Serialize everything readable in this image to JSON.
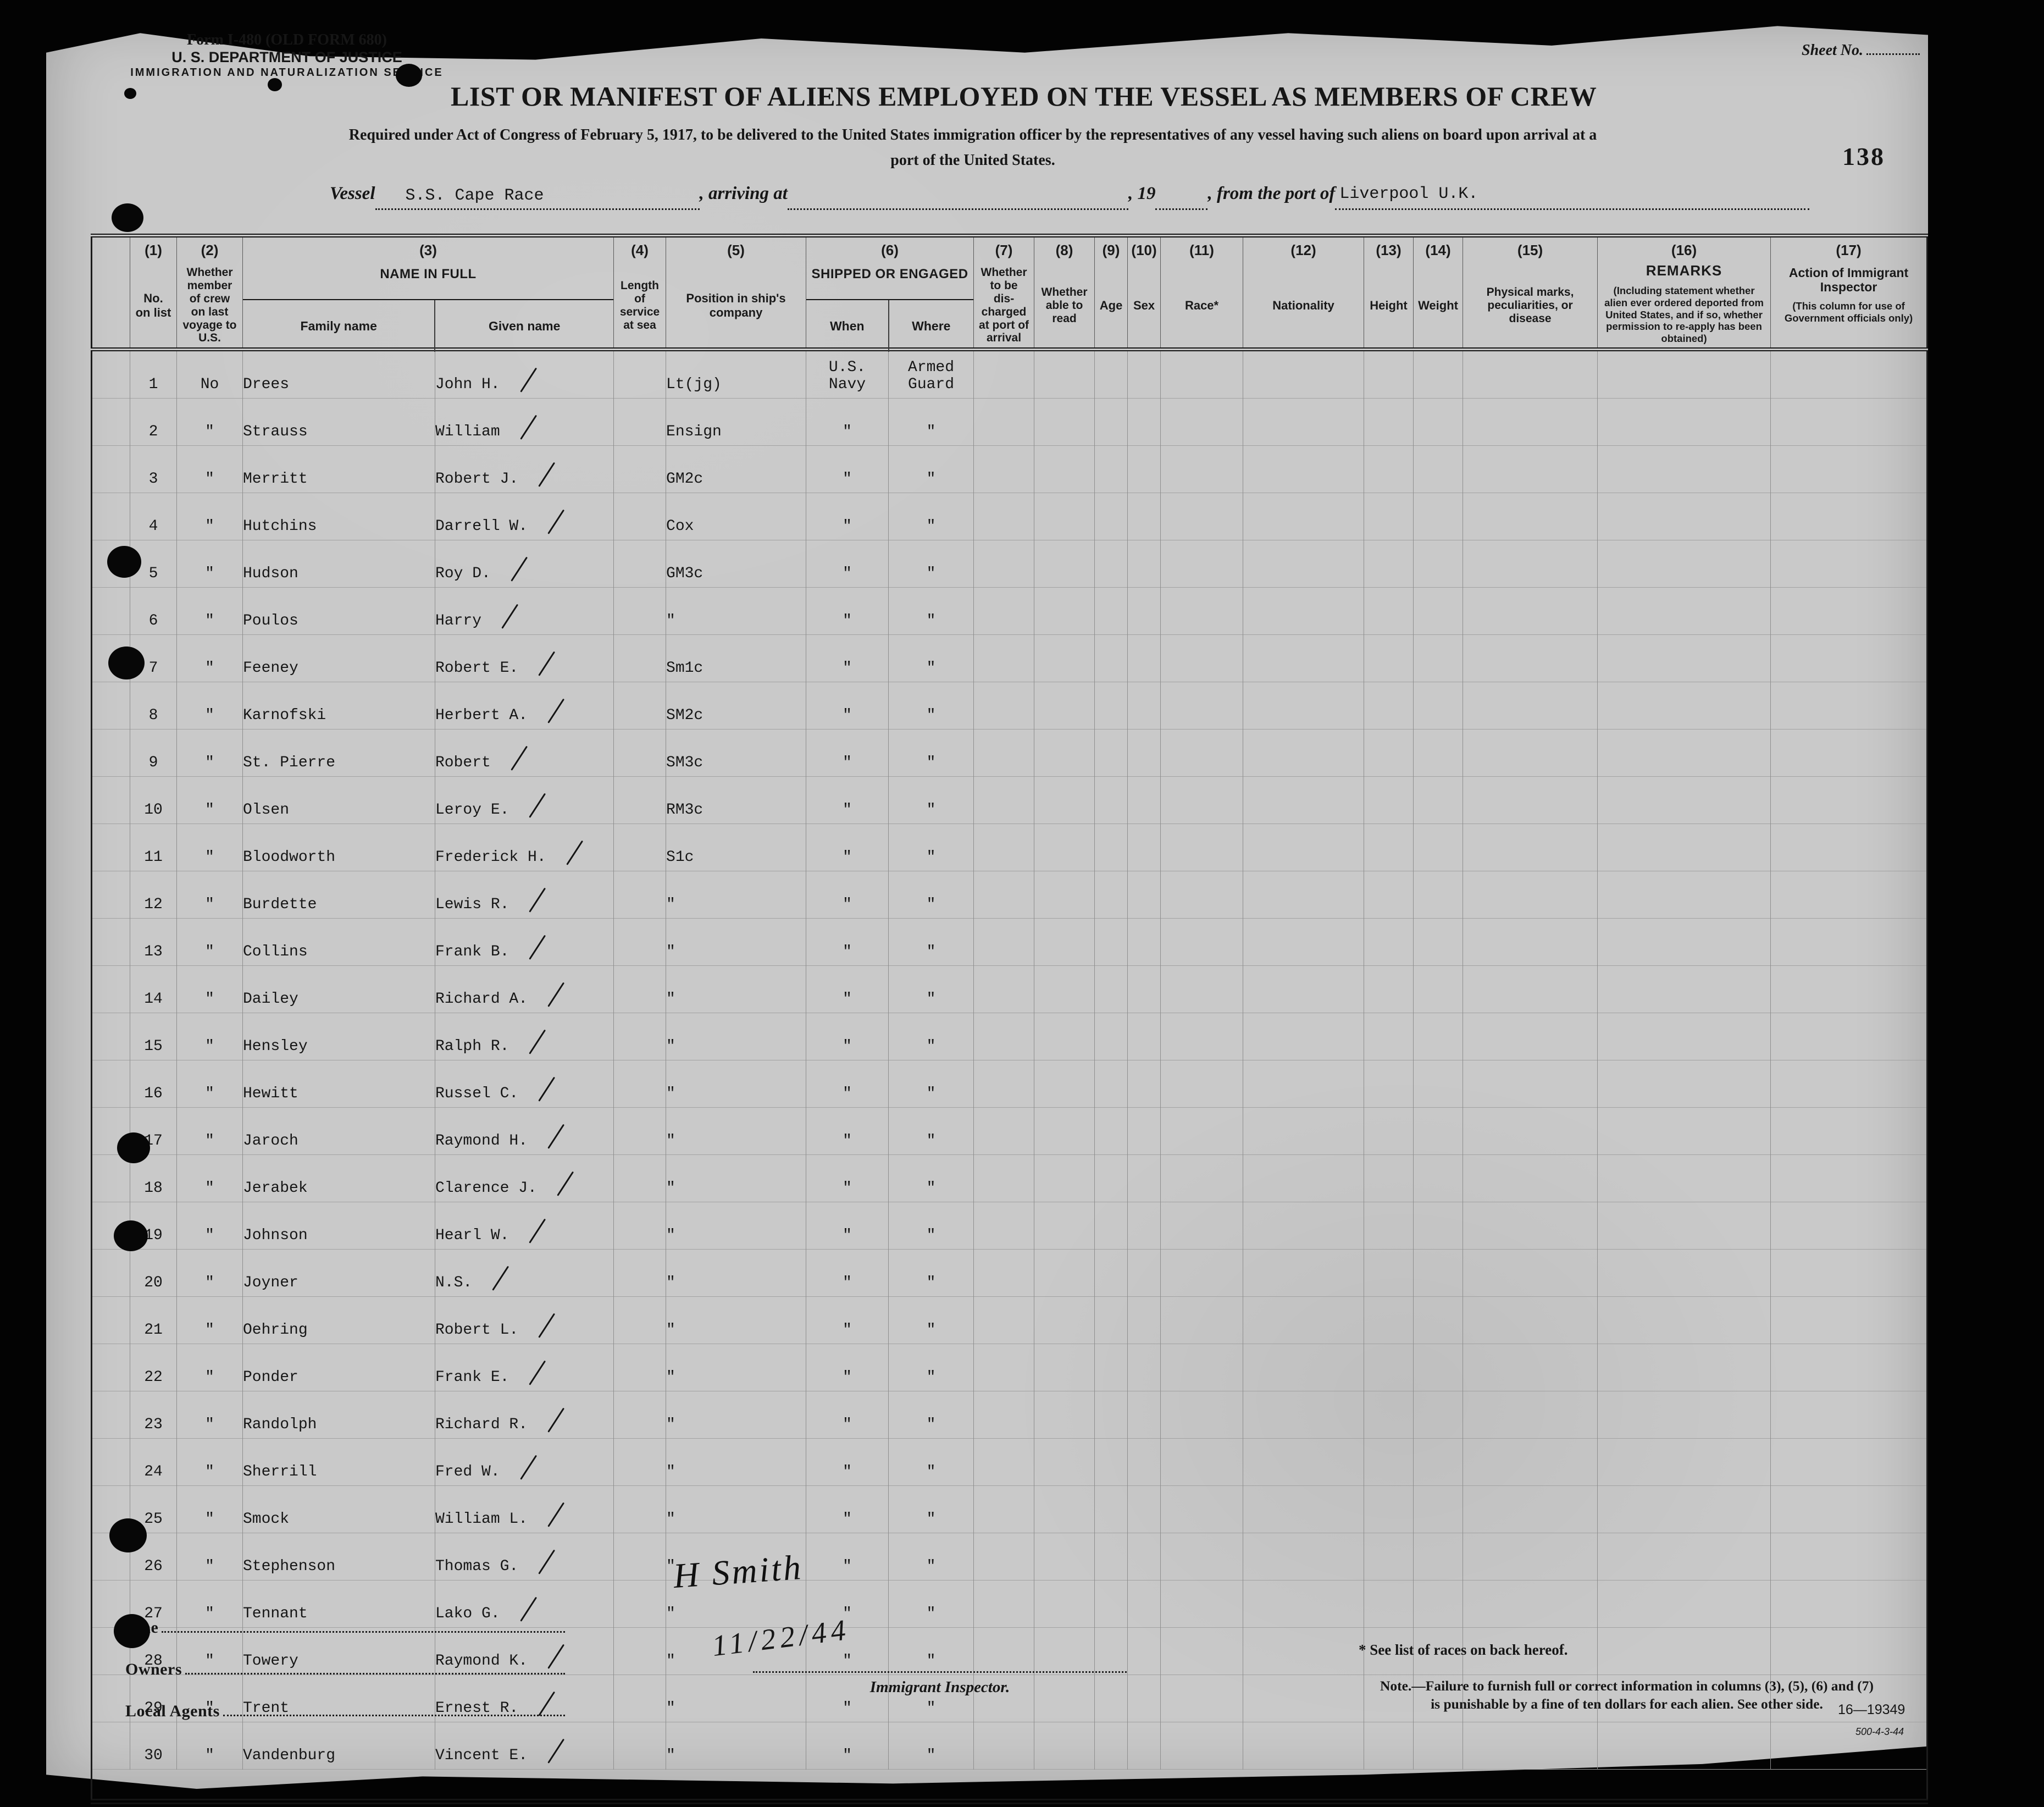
{
  "scan": {
    "page_number": "138",
    "sheet_no_label": "Sheet No."
  },
  "form_header": {
    "form_line": "Form I-480 (OLD FORM 680)",
    "dept_line": "U. S. DEPARTMENT OF JUSTICE",
    "service_line": "IMMIGRATION AND NATURALIZATION SERVICE"
  },
  "title": "LIST OR MANIFEST OF ALIENS EMPLOYED ON THE VESSEL AS MEMBERS OF CREW",
  "subtitle": {
    "line1": "Required under Act of Congress of February 5, 1917, to be delivered to the United States immigration officer by the representatives of any vessel having such aliens on board upon arrival at a",
    "line2": "port of the United States."
  },
  "vessel_line": {
    "vessel_label": "Vessel",
    "vessel_value": "S.S. Cape Race",
    "arriving_label": ", arriving at",
    "year_label": ", 19",
    "port_label": ", from the port of",
    "port_value": "Liverpool U.K."
  },
  "table": {
    "headers": {
      "c1": {
        "num": "(1)",
        "label": "No. on list"
      },
      "c2": {
        "num": "(2)",
        "label": "Whether member of crew on last voyage to U.S."
      },
      "c3": {
        "num": "(3)",
        "label": "NAME IN FULL",
        "sub1": "Family name",
        "sub2": "Given name"
      },
      "c4": {
        "num": "(4)",
        "label": "Length of service at sea"
      },
      "c5": {
        "num": "(5)",
        "label": "Position in ship's company"
      },
      "c6": {
        "num": "(6)",
        "label": "SHIPPED OR ENGAGED",
        "sub1": "When",
        "sub2": "Where"
      },
      "c7": {
        "num": "(7)",
        "label": "Whether to be dis- charged at port of arrival"
      },
      "c8": {
        "num": "(8)",
        "label": "Whether able to read"
      },
      "c9": {
        "num": "(9)",
        "label": "Age"
      },
      "c10": {
        "num": "(10)",
        "label": "Sex"
      },
      "c11": {
        "num": "(11)",
        "label": "Race*"
      },
      "c12": {
        "num": "(12)",
        "label": "Nationality"
      },
      "c13": {
        "num": "(13)",
        "label": "Height"
      },
      "c14": {
        "num": "(14)",
        "label": "Weight"
      },
      "c15": {
        "num": "(15)",
        "label": "Physical marks, peculiarities, or disease"
      },
      "c16": {
        "num": "(16)",
        "label": "REMARKS",
        "paren": "(Including statement whether alien ever ordered deported from United States, and if so, whether permission to re-apply has been obtained)"
      },
      "c17": {
        "num": "(17)",
        "label": "Action of Immigrant Inspector",
        "paren": "(This column for use of Government officials only)"
      }
    },
    "columns_order": [
      "gutter",
      "no",
      "member",
      "family",
      "given",
      "length",
      "position",
      "when",
      "where",
      "discharged",
      "read",
      "age",
      "sex",
      "race",
      "nationality",
      "height",
      "weight",
      "marks",
      "remarks",
      "action"
    ],
    "rows": [
      {
        "no": "1",
        "member": "No",
        "family": "Drees",
        "given": "John H.",
        "position": "Lt(jg)",
        "when": "U.S. Navy",
        "where": "Armed Guard"
      },
      {
        "no": "2",
        "member": "\"",
        "family": "Strauss",
        "given": "William",
        "position": "Ensign",
        "when": "\"",
        "where": "\""
      },
      {
        "no": "3",
        "member": "\"",
        "family": "Merritt",
        "given": "Robert J.",
        "position": "GM2c",
        "when": "\"",
        "where": "\""
      },
      {
        "no": "4",
        "member": "\"",
        "family": "Hutchins",
        "given": "Darrell W.",
        "position": "Cox",
        "when": "\"",
        "where": "\""
      },
      {
        "no": "5",
        "member": "\"",
        "family": "Hudson",
        "given": "Roy D.",
        "position": "GM3c",
        "when": "\"",
        "where": "\""
      },
      {
        "no": "6",
        "member": "\"",
        "family": "Poulos",
        "given": "Harry",
        "position": "\"",
        "when": "\"",
        "where": "\""
      },
      {
        "no": "7",
        "member": "\"",
        "family": "Feeney",
        "given": "Robert E.",
        "position": "Sm1c",
        "when": "\"",
        "where": "\""
      },
      {
        "no": "8",
        "member": "\"",
        "family": "Karnofski",
        "given": "Herbert A.",
        "position": "SM2c",
        "when": "\"",
        "where": "\""
      },
      {
        "no": "9",
        "member": "\"",
        "family": "St. Pierre",
        "given": "Robert",
        "position": "SM3c",
        "when": "\"",
        "where": "\""
      },
      {
        "no": "10",
        "member": "\"",
        "family": "Olsen",
        "given": "Leroy E.",
        "position": "RM3c",
        "when": "\"",
        "where": "\""
      },
      {
        "no": "11",
        "member": "\"",
        "family": "Bloodworth",
        "given": "Frederick H.",
        "position": "S1c",
        "when": "\"",
        "where": "\""
      },
      {
        "no": "12",
        "member": "\"",
        "family": "Burdette",
        "given": "Lewis R.",
        "position": "\"",
        "when": "\"",
        "where": "\""
      },
      {
        "no": "13",
        "member": "\"",
        "family": "Collins",
        "given": "Frank B.",
        "position": "\"",
        "when": "\"",
        "where": "\""
      },
      {
        "no": "14",
        "member": "\"",
        "family": "Dailey",
        "given": "Richard A.",
        "position": "\"",
        "when": "\"",
        "where": "\""
      },
      {
        "no": "15",
        "member": "\"",
        "family": "Hensley",
        "given": "Ralph R.",
        "position": "\"",
        "when": "\"",
        "where": "\""
      },
      {
        "no": "16",
        "member": "\"",
        "family": "Hewitt",
        "given": "Russel C.",
        "position": "\"",
        "when": "\"",
        "where": "\""
      },
      {
        "no": "17",
        "member": "\"",
        "family": "Jaroch",
        "given": "Raymond H.",
        "position": "\"",
        "when": "\"",
        "where": "\""
      },
      {
        "no": "18",
        "member": "\"",
        "family": "Jerabek",
        "given": "Clarence J.",
        "position": "\"",
        "when": "\"",
        "where": "\""
      },
      {
        "no": "19",
        "member": "\"",
        "family": "Johnson",
        "given": "Hearl W.",
        "position": "\"",
        "when": "\"",
        "where": "\""
      },
      {
        "no": "20",
        "member": "\"",
        "family": "Joyner",
        "given": "N.S.",
        "position": "\"",
        "when": "\"",
        "where": "\""
      },
      {
        "no": "21",
        "member": "\"",
        "family": "Oehring",
        "given": "Robert L.",
        "position": "\"",
        "when": "\"",
        "where": "\""
      },
      {
        "no": "22",
        "member": "\"",
        "family": "Ponder",
        "given": "Frank E.",
        "position": "\"",
        "when": "\"",
        "where": "\""
      },
      {
        "no": "23",
        "member": "\"",
        "family": "Randolph",
        "given": "Richard R.",
        "position": "\"",
        "when": "\"",
        "where": "\""
      },
      {
        "no": "24",
        "member": "\"",
        "family": "Sherrill",
        "given": "Fred W.",
        "position": "\"",
        "when": "\"",
        "where": "\""
      },
      {
        "no": "25",
        "member": "\"",
        "family": "Smock",
        "given": "William L.",
        "position": "\"",
        "when": "\"",
        "where": "\""
      },
      {
        "no": "26",
        "member": "\"",
        "family": "Stephenson",
        "given": "Thomas G.",
        "position": "\"",
        "when": "\"",
        "where": "\""
      },
      {
        "no": "27",
        "member": "\"",
        "family": "Tennant",
        "given": "Lako G.",
        "position": "\"",
        "when": "\"",
        "where": "\""
      },
      {
        "no": "28",
        "member": "\"",
        "family": "Towery",
        "given": "Raymond K.",
        "position": "\"",
        "when": "\"",
        "where": "\""
      },
      {
        "no": "29",
        "member": "\"",
        "family": "Trent",
        "given": "Ernest R.",
        "position": "\"",
        "when": "\"",
        "where": "\""
      },
      {
        "no": "30",
        "member": "\"",
        "family": "Vandenburg",
        "given": "Vincent E.",
        "position": "\"",
        "when": "\"",
        "where": "\""
      }
    ]
  },
  "footer": {
    "signature": "H Smith",
    "signature_date": "11/22/44",
    "line_label": "Line",
    "owners_label": "Owners",
    "local_agents_label": "Local Agents",
    "immigrant_inspector_label": "Immigrant Inspector.",
    "races_note": "* See list of races on back hereof.",
    "penalty_note_line1": "Note.—Failure to furnish full or correct information in columns (3), (5), (6) and (7)",
    "penalty_note_line2": "is punishable by a fine of ten dollars for each alien.  See other side.",
    "print_code": "16—19349",
    "print_code_small": "500-4-3-44"
  }
}
